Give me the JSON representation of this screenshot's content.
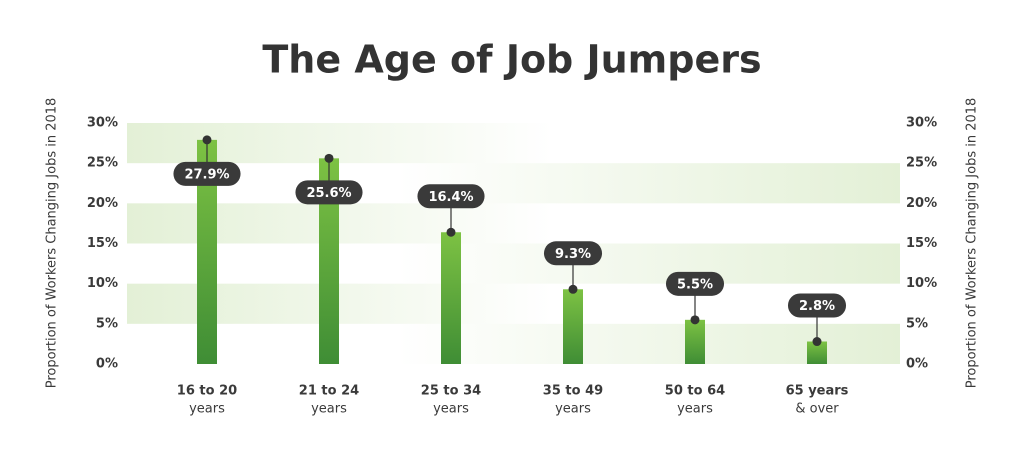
{
  "chart_data": {
    "type": "bar",
    "title": "The Age of Job Jumpers",
    "y_label": "Proportion of Workers Changing Jobs in 2018",
    "y2_label": "Proportion of Workers Changing Jobs in 2018",
    "categories": [
      [
        "16 to 20",
        "years"
      ],
      [
        "21 to 24",
        "years"
      ],
      [
        "25 to 34",
        "years"
      ],
      [
        "35 to 49",
        "years"
      ],
      [
        "50 to 64",
        "years"
      ],
      [
        "65 years",
        "& over"
      ]
    ],
    "values": [
      27.9,
      25.6,
      16.4,
      9.3,
      5.5,
      2.8
    ],
    "value_labels": [
      "27.9%",
      "25.6%",
      "16.4%",
      "9.3%",
      "5.5%",
      "2.8%"
    ],
    "color": "#5aa83a",
    "ylim": [
      0,
      30
    ],
    "yticks": [
      {
        "value": 0,
        "label": "0%"
      },
      {
        "value": 5,
        "label": "5%"
      },
      {
        "value": 10,
        "label": "10%"
      },
      {
        "value": 15,
        "label": "15%"
      },
      {
        "value": 20,
        "label": "20%"
      },
      {
        "value": 25,
        "label": "25%"
      },
      {
        "value": 30,
        "label": "30%"
      }
    ],
    "y2lim": [
      0,
      30
    ],
    "y2ticks": [
      {
        "value": 0,
        "label": "0%"
      },
      {
        "value": 5,
        "label": "5%"
      },
      {
        "value": 10,
        "label": "10%"
      },
      {
        "value": 15,
        "label": "15%"
      },
      {
        "value": 20,
        "label": "20%"
      },
      {
        "value": 25,
        "label": "25%"
      },
      {
        "value": 30,
        "label": "30%"
      }
    ]
  }
}
